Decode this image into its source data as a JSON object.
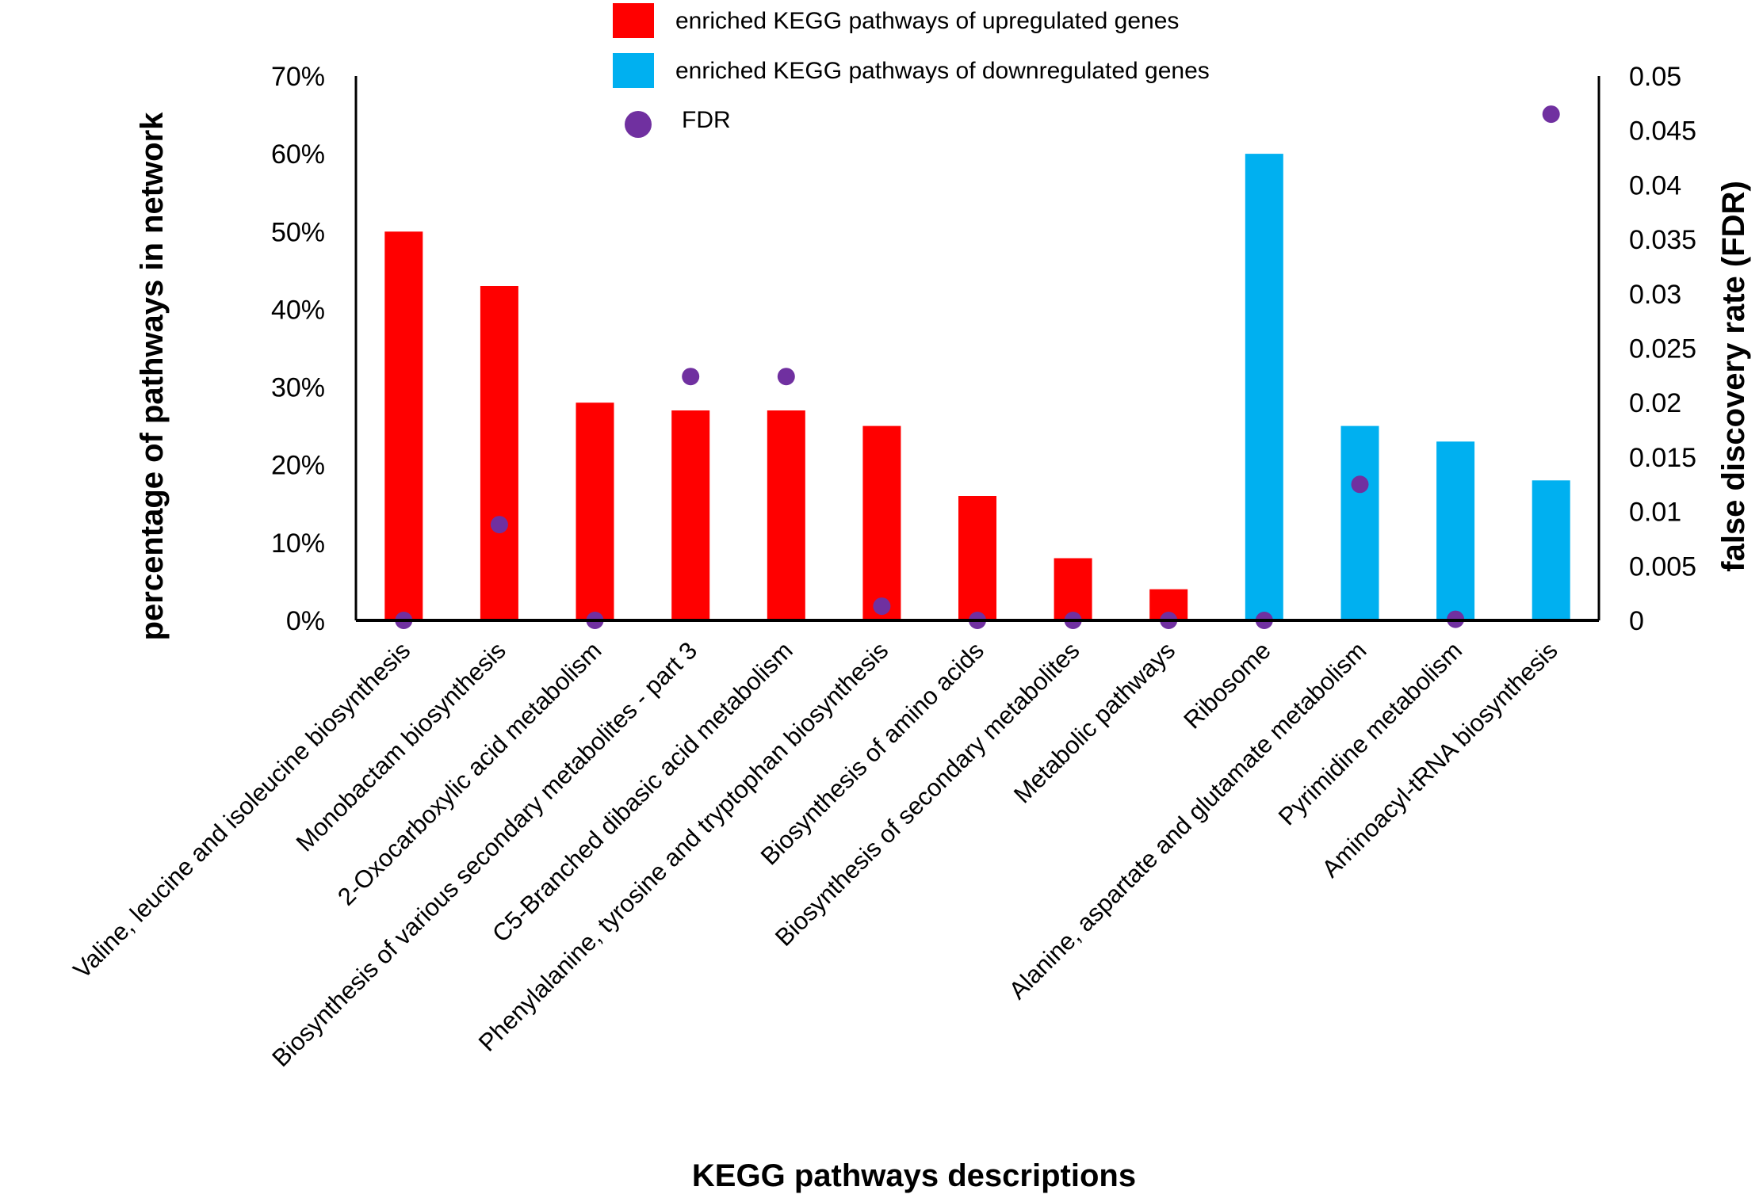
{
  "chart_data": {
    "type": "bar",
    "title": "",
    "xlabel": "KEGG pathways descriptions",
    "ylabel": "percentage of pathways in network",
    "y2label": "false discovery rate (FDR)",
    "ylim": [
      0,
      70
    ],
    "y2lim": [
      0,
      0.05
    ],
    "yticks": [
      "0%",
      "10%",
      "20%",
      "30%",
      "40%",
      "50%",
      "60%",
      "70%"
    ],
    "y2ticks": [
      "0",
      "0.005",
      "0.01",
      "0.015",
      "0.02",
      "0.025",
      "0.03",
      "0.035",
      "0.04",
      "0.045",
      "0.05"
    ],
    "categories": [
      "Valine, leucine and isoleucine biosynthesis",
      "Monobactam biosynthesis",
      "2-Oxocarboxylic acid metabolism",
      "Biosynthesis of various secondary metabolites - part 3",
      "C5-Branched dibasic acid metabolism",
      "Phenylalanine, tyrosine and tryptophan biosynthesis",
      "Biosynthesis of amino acids",
      "Biosynthesis of secondary metabolites",
      "Metabolic pathways",
      "Ribosome",
      "Alanine, aspartate and glutamate metabolism",
      "Pyrimidine metabolism",
      "Aminoacyl-tRNA biosynthesis"
    ],
    "values": [
      50,
      43,
      28,
      27,
      27,
      25,
      16,
      8,
      4,
      60,
      25,
      23,
      18
    ],
    "groups": [
      "up",
      "up",
      "up",
      "up",
      "up",
      "up",
      "up",
      "up",
      "up",
      "down",
      "down",
      "down",
      "down"
    ],
    "fdr": [
      0,
      0.0088,
      0,
      0.0224,
      0.0224,
      0.0013,
      0,
      0,
      0,
      0,
      0.0125,
      0.0001,
      0.0465
    ],
    "legend": [
      {
        "key": "up",
        "label": "enriched KEGG pathways of upregulated genes",
        "marker": "square"
      },
      {
        "key": "down",
        "label": "enriched KEGG pathways of downregulated genes",
        "marker": "square"
      },
      {
        "key": "fdr",
        "label": "FDR",
        "marker": "circle"
      }
    ],
    "legend_position": "top-center",
    "colors": {
      "up": "#FF0000",
      "down": "#00B0F0",
      "fdr": "#7030A0",
      "axis": "#000000"
    }
  }
}
